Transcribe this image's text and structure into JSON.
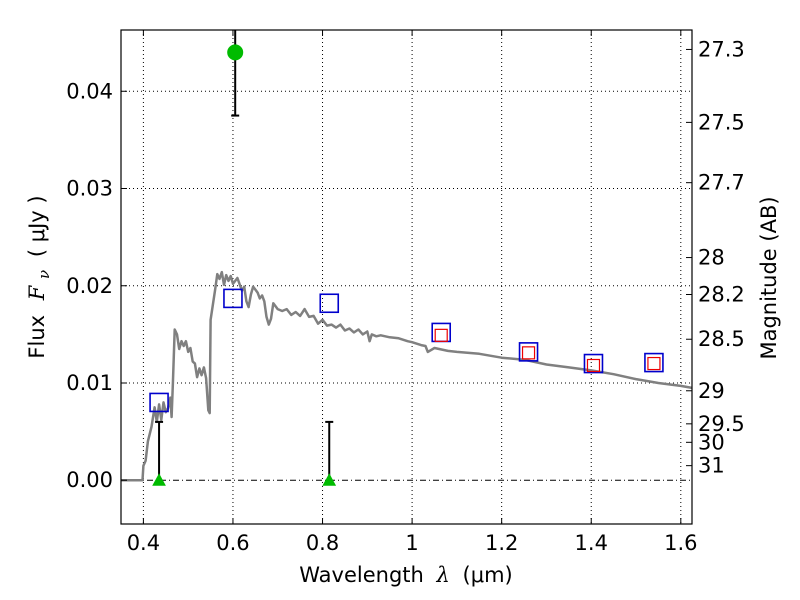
{
  "chart_data": {
    "type": "scatter",
    "xlabel_prefix": "Wavelength",
    "xlabel_symbol": "λ",
    "xlabel_unit": "(μm)",
    "ylabel_prefix": "Flux",
    "ylabel_symbol": "F",
    "ylabel_subscript": "ν",
    "ylabel_unit": "( μJy )",
    "y2label": "Magnitude (AB)",
    "xlim": [
      0.35,
      1.625
    ],
    "ylim": [
      -0.0045,
      0.0463
    ],
    "x_ticks": [
      {
        "value": 0.4,
        "label": "0.4"
      },
      {
        "value": 0.6,
        "label": "0.6"
      },
      {
        "value": 0.8,
        "label": "0.8"
      },
      {
        "value": 1.0,
        "label": "1"
      },
      {
        "value": 1.2,
        "label": "1.2"
      },
      {
        "value": 1.4,
        "label": "1.4"
      },
      {
        "value": 1.6,
        "label": "1.6"
      }
    ],
    "y_ticks": [
      {
        "value": 0.0,
        "label": "0.00"
      },
      {
        "value": 0.01,
        "label": "0.01"
      },
      {
        "value": 0.02,
        "label": "0.02"
      },
      {
        "value": 0.03,
        "label": "0.03"
      },
      {
        "value": 0.04,
        "label": "0.04"
      }
    ],
    "y2_ticks": [
      {
        "flux": 0.0443,
        "label": "27.3"
      },
      {
        "flux": 0.0368,
        "label": "27.5"
      },
      {
        "flux": 0.0306,
        "label": "27.7"
      },
      {
        "flux": 0.0229,
        "label": "28"
      },
      {
        "flux": 0.0191,
        "label": "28.2"
      },
      {
        "flux": 0.0145,
        "label": "28.5"
      },
      {
        "flux": 0.0092,
        "label": "29"
      },
      {
        "flux": 0.0058,
        "label": "29.5"
      },
      {
        "flux": 0.0039,
        "label": "30"
      },
      {
        "flux": 0.0015,
        "label": "31"
      }
    ],
    "grid": true,
    "series": [
      {
        "kind": "model",
        "color": "#808080",
        "points": [
          [
            0.35,
            0.0
          ],
          [
            0.398,
            0.0
          ],
          [
            0.4,
            0.0015
          ],
          [
            0.405,
            0.002
          ],
          [
            0.41,
            0.004
          ],
          [
            0.418,
            0.0055
          ],
          [
            0.425,
            0.0075
          ],
          [
            0.43,
            0.006
          ],
          [
            0.435,
            0.0078
          ],
          [
            0.44,
            0.0062
          ],
          [
            0.445,
            0.008
          ],
          [
            0.45,
            0.007
          ],
          [
            0.455,
            0.0074
          ],
          [
            0.46,
            0.0085
          ],
          [
            0.463,
            0.0065
          ],
          [
            0.466,
            0.01
          ],
          [
            0.47,
            0.0155
          ],
          [
            0.475,
            0.015
          ],
          [
            0.48,
            0.0135
          ],
          [
            0.485,
            0.0143
          ],
          [
            0.49,
            0.0138
          ],
          [
            0.495,
            0.0143
          ],
          [
            0.5,
            0.0132
          ],
          [
            0.505,
            0.0136
          ],
          [
            0.51,
            0.0122
          ],
          [
            0.515,
            0.012
          ],
          [
            0.52,
            0.0106
          ],
          [
            0.525,
            0.0115
          ],
          [
            0.53,
            0.0108
          ],
          [
            0.535,
            0.0116
          ],
          [
            0.54,
            0.0105
          ],
          [
            0.545,
            0.0072
          ],
          [
            0.548,
            0.0069
          ],
          [
            0.55,
            0.0165
          ],
          [
            0.555,
            0.018
          ],
          [
            0.56,
            0.0195
          ],
          [
            0.565,
            0.0212
          ],
          [
            0.57,
            0.0207
          ],
          [
            0.575,
            0.0214
          ],
          [
            0.58,
            0.0201
          ],
          [
            0.585,
            0.0211
          ],
          [
            0.59,
            0.0205
          ],
          [
            0.595,
            0.021
          ],
          [
            0.6,
            0.0202
          ],
          [
            0.61,
            0.0208
          ],
          [
            0.62,
            0.0195
          ],
          [
            0.625,
            0.0199
          ],
          [
            0.63,
            0.0184
          ],
          [
            0.635,
            0.0178
          ],
          [
            0.64,
            0.0191
          ],
          [
            0.645,
            0.0199
          ],
          [
            0.65,
            0.0196
          ],
          [
            0.655,
            0.0193
          ],
          [
            0.66,
            0.0187
          ],
          [
            0.665,
            0.019
          ],
          [
            0.67,
            0.0184
          ],
          [
            0.675,
            0.0168
          ],
          [
            0.68,
            0.016
          ],
          [
            0.685,
            0.0166
          ],
          [
            0.69,
            0.0182
          ],
          [
            0.7,
            0.0176
          ],
          [
            0.71,
            0.0174
          ],
          [
            0.72,
            0.0176
          ],
          [
            0.73,
            0.017
          ],
          [
            0.74,
            0.0173
          ],
          [
            0.75,
            0.0169
          ],
          [
            0.76,
            0.0176
          ],
          [
            0.77,
            0.0168
          ],
          [
            0.78,
            0.0169
          ],
          [
            0.79,
            0.0161
          ],
          [
            0.8,
            0.0165
          ],
          [
            0.81,
            0.0159
          ],
          [
            0.82,
            0.016
          ],
          [
            0.83,
            0.0157
          ],
          [
            0.84,
            0.016
          ],
          [
            0.85,
            0.0154
          ],
          [
            0.86,
            0.0156
          ],
          [
            0.87,
            0.0152
          ],
          [
            0.88,
            0.0155
          ],
          [
            0.89,
            0.015
          ],
          [
            0.9,
            0.0153
          ],
          [
            0.905,
            0.0143
          ],
          [
            0.91,
            0.015
          ],
          [
            0.92,
            0.0148
          ],
          [
            0.93,
            0.0149
          ],
          [
            0.95,
            0.0147
          ],
          [
            0.97,
            0.0146
          ],
          [
            0.99,
            0.0143
          ],
          [
            1.0,
            0.0142
          ],
          [
            1.02,
            0.0139
          ],
          [
            1.03,
            0.0138
          ],
          [
            1.035,
            0.0132
          ],
          [
            1.05,
            0.0136
          ],
          [
            1.08,
            0.0133
          ],
          [
            1.1,
            0.0132
          ],
          [
            1.15,
            0.013
          ],
          [
            1.2,
            0.0126
          ],
          [
            1.25,
            0.0124
          ],
          [
            1.3,
            0.0119
          ],
          [
            1.35,
            0.0116
          ],
          [
            1.4,
            0.0113
          ],
          [
            1.45,
            0.0109
          ],
          [
            1.5,
            0.0104
          ],
          [
            1.55,
            0.01
          ],
          [
            1.6,
            0.0097
          ],
          [
            1.625,
            0.0095
          ]
        ]
      },
      {
        "kind": "observed_squares",
        "color": "#0000cc",
        "points": [
          [
            0.435,
            0.008
          ],
          [
            0.6,
            0.0187
          ],
          [
            0.815,
            0.0182
          ],
          [
            1.065,
            0.0152
          ],
          [
            1.26,
            0.0132
          ],
          [
            1.405,
            0.012
          ],
          [
            1.54,
            0.0121
          ]
        ]
      },
      {
        "kind": "model_squares",
        "color": "#ee0000",
        "points": [
          [
            1.065,
            0.0149
          ],
          [
            1.26,
            0.0131
          ],
          [
            1.405,
            0.0118
          ],
          [
            1.54,
            0.012
          ]
        ]
      },
      {
        "kind": "detection_point",
        "color": "#00bb00",
        "points": [
          {
            "x": 0.605,
            "y": 0.044,
            "err_low": 0.0375,
            "err_high": 0.0463
          }
        ]
      },
      {
        "kind": "upper_limits",
        "color": "#00bb00",
        "points": [
          {
            "x": 0.435,
            "y": 0.0,
            "upper": 0.006
          },
          {
            "x": 0.815,
            "y": 0.0,
            "upper": 0.006
          }
        ]
      }
    ]
  }
}
